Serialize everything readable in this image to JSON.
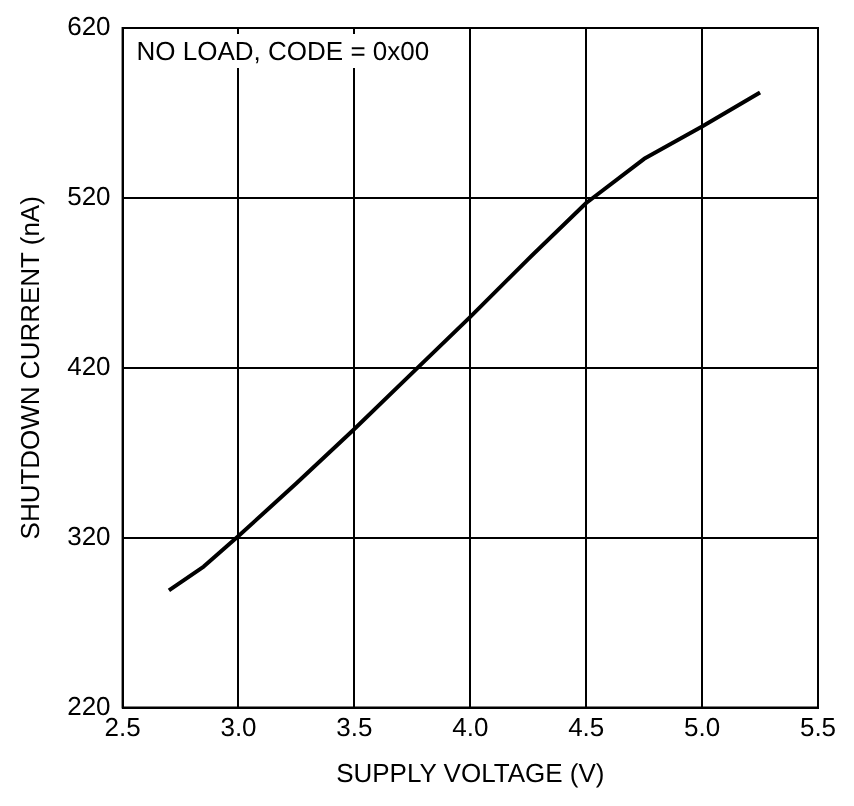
{
  "chart_data": {
    "type": "line",
    "xlabel": "SUPPLY VOLTAGE (V)",
    "ylabel": "SHUTDOWN CURRENT (nA)",
    "annotations": [
      "NO LOAD, CODE = 0x00"
    ],
    "series": [
      {
        "color": "#000000",
        "x": [
          2.7,
          2.85,
          3.0,
          3.25,
          3.5,
          3.75,
          4.0,
          4.25,
          4.5,
          4.75,
          5.0,
          5.25
        ],
        "values": [
          289,
          303,
          321,
          352,
          384,
          417,
          450,
          484,
          517,
          543,
          562,
          582
        ]
      }
    ],
    "xlim": [
      2.5,
      5.5
    ],
    "xticks": [
      {
        "value": 2.5,
        "label": "2.5"
      },
      {
        "value": 3,
        "label": "3.0"
      },
      {
        "value": 3.5,
        "label": "3.5"
      },
      {
        "value": 4,
        "label": "4.0"
      },
      {
        "value": 4.5,
        "label": "4.5"
      },
      {
        "value": 5,
        "label": "5.0"
      },
      {
        "value": 5.5,
        "label": "5.5"
      }
    ],
    "ylim": [
      220,
      620
    ],
    "yticks": [
      220,
      320,
      420,
      520,
      620
    ],
    "grid": true,
    "legend": false,
    "marker": "none",
    "line_style": "solid"
  }
}
